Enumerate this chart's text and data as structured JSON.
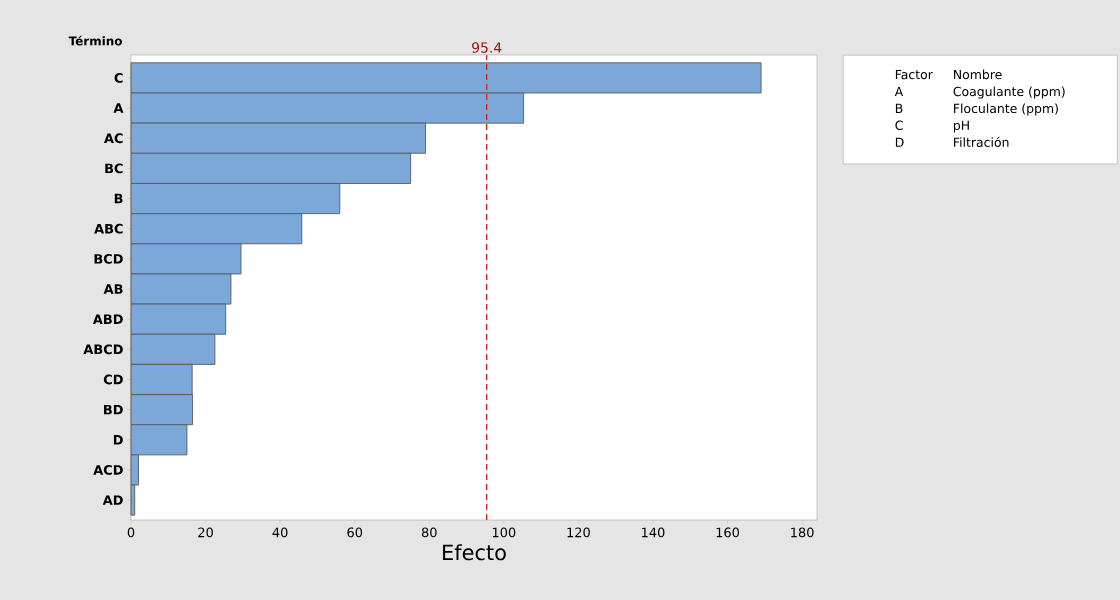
{
  "chart_data": {
    "type": "bar",
    "orientation": "horizontal",
    "xlabel": "Efecto",
    "ylabel": "Término",
    "categories": [
      "C",
      "A",
      "AC",
      "BC",
      "B",
      "ABC",
      "BCD",
      "AB",
      "ABD",
      "ABCD",
      "CD",
      "BD",
      "D",
      "ACD",
      "AD"
    ],
    "values": [
      169,
      105.3,
      79,
      75,
      56,
      45.8,
      29.5,
      26.8,
      25.4,
      22.5,
      16.4,
      16.5,
      15,
      2,
      1
    ],
    "color": "#7ba7d9",
    "xlim": [
      0,
      184
    ],
    "xticks": [
      0,
      20,
      40,
      60,
      80,
      100,
      120,
      140,
      160,
      180
    ],
    "ref_lines": [
      {
        "axis": "x",
        "value": 95.4,
        "label": "95.4",
        "color": "#d62020",
        "line_style": "dashed"
      }
    ],
    "annotations": [
      "Factor",
      "Nombre",
      "A",
      "Coagulante (ppm)",
      "B",
      "Floculante (ppm)",
      "C",
      "pH",
      "D",
      "Filtración"
    ]
  }
}
